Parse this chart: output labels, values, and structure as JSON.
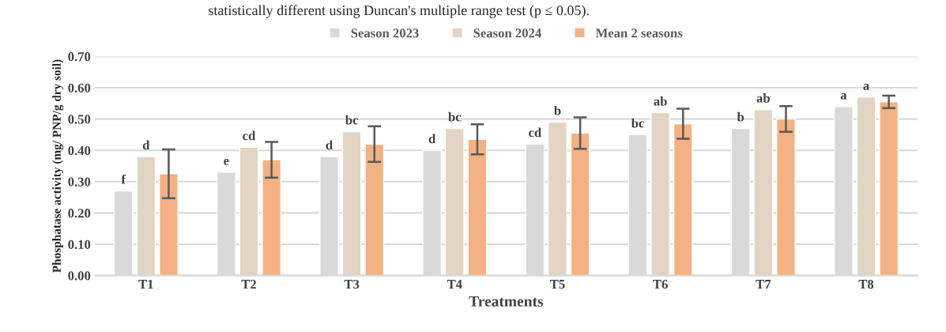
{
  "chart_data": {
    "type": "bar",
    "annotations": [
      "statistically different using Duncan's multiple range test (p ≤ 0.05)."
    ],
    "xlabel": "Treatments",
    "ylabel": "Phosphatase activity (mg/ PNP/g dry soil)",
    "categories": [
      "T1",
      "T2",
      "T3",
      "T4",
      "T5",
      "T6",
      "T7",
      "T8"
    ],
    "series": [
      {
        "name": "Season 2023",
        "color": "#d9d9d9",
        "values": [
          0.27,
          0.33,
          0.38,
          0.4,
          0.42,
          0.45,
          0.47,
          0.54
        ],
        "value_labels": [
          "f",
          "e",
          "d",
          "d",
          "cd",
          "bc",
          "b",
          "a"
        ]
      },
      {
        "name": "Season 2024",
        "color": "#e3d4c3",
        "values": [
          0.38,
          0.41,
          0.46,
          0.47,
          0.49,
          0.52,
          0.53,
          0.57
        ],
        "value_labels": [
          "d",
          "cd",
          "bc",
          "bc",
          "b",
          "ab",
          "ab",
          "a"
        ]
      },
      {
        "name": "Mean 2 seasons",
        "color": "#f4b183",
        "values": [
          0.325,
          0.37,
          0.42,
          0.435,
          0.455,
          0.485,
          0.5,
          0.555
        ],
        "errors": [
          0.078,
          0.057,
          0.057,
          0.048,
          0.05,
          0.048,
          0.041,
          0.02
        ]
      }
    ],
    "ylim": [
      0,
      0.7
    ],
    "yticks": [
      {
        "value": 0,
        "label": "0.00"
      },
      {
        "value": 0.1,
        "label": "0.10"
      },
      {
        "value": 0.2,
        "label": "0.20"
      },
      {
        "value": 0.3,
        "label": "0.30"
      },
      {
        "value": 0.4,
        "label": "0.40"
      },
      {
        "value": 0.5,
        "label": "0.50"
      },
      {
        "value": 0.6,
        "label": "0.60"
      },
      {
        "value": 0.7,
        "label": "0.70"
      }
    ],
    "grid": "y",
    "legend": "top"
  }
}
